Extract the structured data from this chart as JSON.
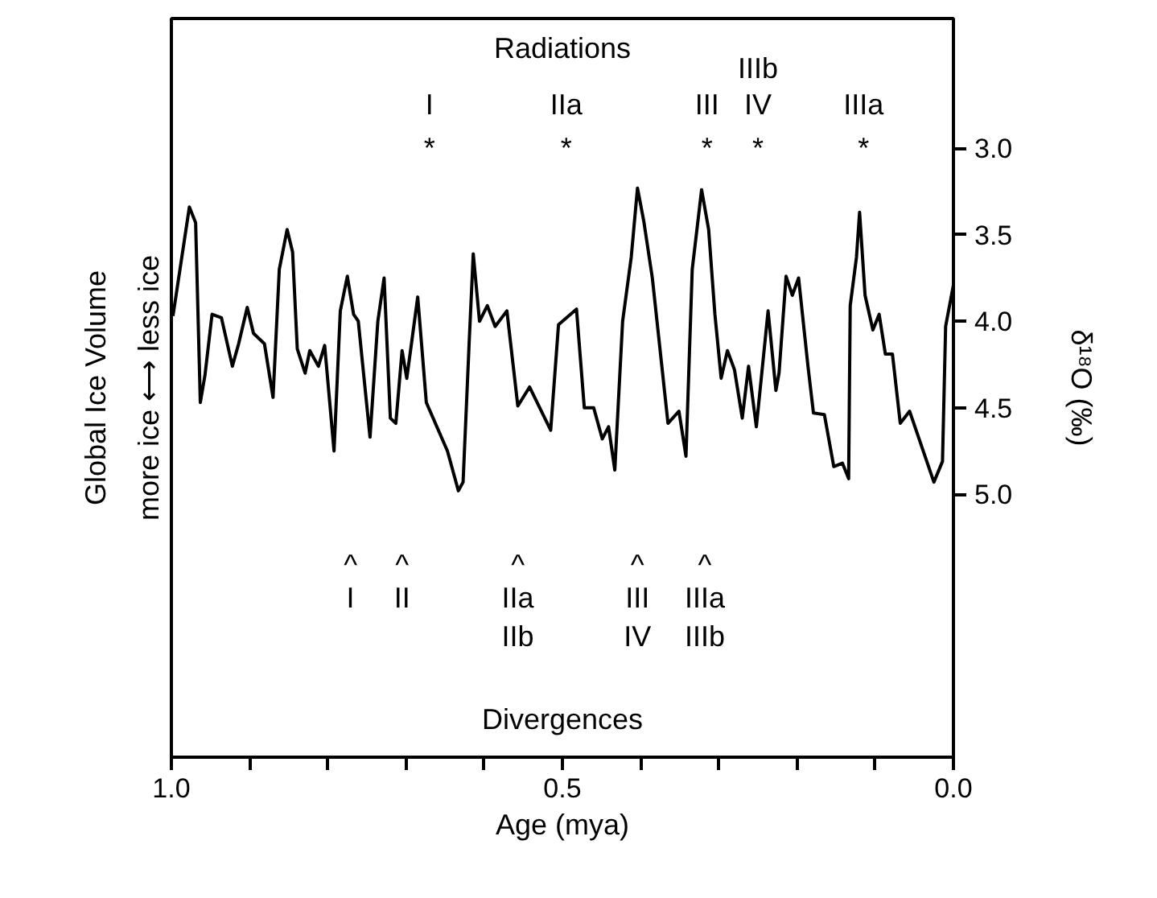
{
  "chart_data": {
    "type": "line",
    "xlabel": "Age (mya)",
    "ylabel": "δ¹⁸O (‰)",
    "xlim": [
      1.0,
      0.0
    ],
    "xticks": [
      {
        "value": 1.0,
        "label": "1.0"
      },
      {
        "value": 0.9,
        "label": null
      },
      {
        "value": 0.8,
        "label": null
      },
      {
        "value": 0.7,
        "label": null
      },
      {
        "value": 0.6,
        "label": null
      },
      {
        "value": 0.5,
        "label": "0.5"
      },
      {
        "value": 0.4,
        "label": null
      },
      {
        "value": 0.3,
        "label": null
      },
      {
        "value": 0.2,
        "label": null
      },
      {
        "value": 0.1,
        "label": null
      },
      {
        "value": 0.0,
        "label": "0.0"
      }
    ],
    "ylim": [
      6.52,
      2.25
    ],
    "yticks": [
      {
        "value": 3.0,
        "label": "3.0"
      },
      {
        "value": 3.5,
        "label": "3.5"
      },
      {
        "value": 4.0,
        "label": "4.0"
      },
      {
        "value": 4.5,
        "label": "4.5"
      },
      {
        "value": 5.0,
        "label": "5.0"
      }
    ],
    "grid": false,
    "marker": "none",
    "line_style": "solid",
    "series": [
      {
        "color": "#000000",
        "x": [
          0.998,
          0.994,
          0.977,
          0.969,
          0.963,
          0.957,
          0.948,
          0.936,
          0.922,
          0.914,
          0.903,
          0.895,
          0.881,
          0.87,
          0.862,
          0.852,
          0.845,
          0.839,
          0.829,
          0.823,
          0.812,
          0.804,
          0.792,
          0.784,
          0.775,
          0.767,
          0.761,
          0.746,
          0.736,
          0.728,
          0.72,
          0.713,
          0.705,
          0.699,
          0.685,
          0.674,
          0.647,
          0.633,
          0.627,
          0.619,
          0.614,
          0.606,
          0.596,
          0.586,
          0.571,
          0.557,
          0.542,
          0.515,
          0.505,
          0.482,
          0.472,
          0.46,
          0.449,
          0.441,
          0.433,
          0.423,
          0.412,
          0.404,
          0.396,
          0.385,
          0.365,
          0.351,
          0.342,
          0.334,
          0.322,
          0.313,
          0.305,
          0.297,
          0.289,
          0.28,
          0.27,
          0.262,
          0.252,
          0.237,
          0.227,
          0.223,
          0.214,
          0.206,
          0.198,
          0.186,
          0.179,
          0.165,
          0.153,
          0.142,
          0.134,
          0.132,
          0.124,
          0.12,
          0.113,
          0.103,
          0.095,
          0.087,
          0.078,
          0.068,
          0.056,
          0.025,
          0.014,
          0.01,
          0.0
        ],
        "values": [
          3.97,
          3.85,
          3.34,
          3.43,
          4.47,
          4.31,
          3.96,
          3.98,
          4.26,
          4.13,
          3.92,
          4.07,
          4.13,
          4.44,
          3.7,
          3.47,
          3.6,
          4.16,
          4.3,
          4.17,
          4.26,
          4.14,
          4.75,
          3.94,
          3.74,
          3.96,
          4.0,
          4.67,
          4.0,
          3.75,
          4.56,
          4.59,
          4.17,
          4.33,
          3.86,
          4.47,
          4.75,
          4.98,
          4.93,
          4.1,
          3.61,
          4.0,
          3.91,
          4.03,
          3.94,
          4.49,
          4.38,
          4.63,
          4.02,
          3.93,
          4.5,
          4.5,
          4.68,
          4.61,
          4.86,
          4.0,
          3.63,
          3.23,
          3.42,
          3.75,
          4.59,
          4.52,
          4.78,
          3.7,
          3.24,
          3.47,
          3.96,
          4.33,
          4.17,
          4.28,
          4.56,
          4.26,
          4.61,
          3.94,
          4.4,
          4.3,
          3.74,
          3.85,
          3.75,
          4.26,
          4.53,
          4.54,
          4.84,
          4.82,
          4.91,
          3.91,
          3.63,
          3.37,
          3.85,
          4.05,
          3.96,
          4.19,
          4.19,
          4.59,
          4.52,
          4.93,
          4.81,
          4.03,
          3.79
        ]
      }
    ],
    "annotations": [
      "Global Ice Volume",
      "more ice ⟷ less ice",
      "Radiations",
      "I",
      "IIa",
      "III",
      "IIIb",
      "IV",
      "IIIa",
      "*",
      "*",
      "*",
      "*",
      "*",
      "^",
      "^",
      "^",
      "^",
      "^",
      "I",
      "II",
      "IIa",
      "IIb",
      "III",
      "IV",
      "IIIa",
      "IIIb",
      "Divergences"
    ]
  }
}
